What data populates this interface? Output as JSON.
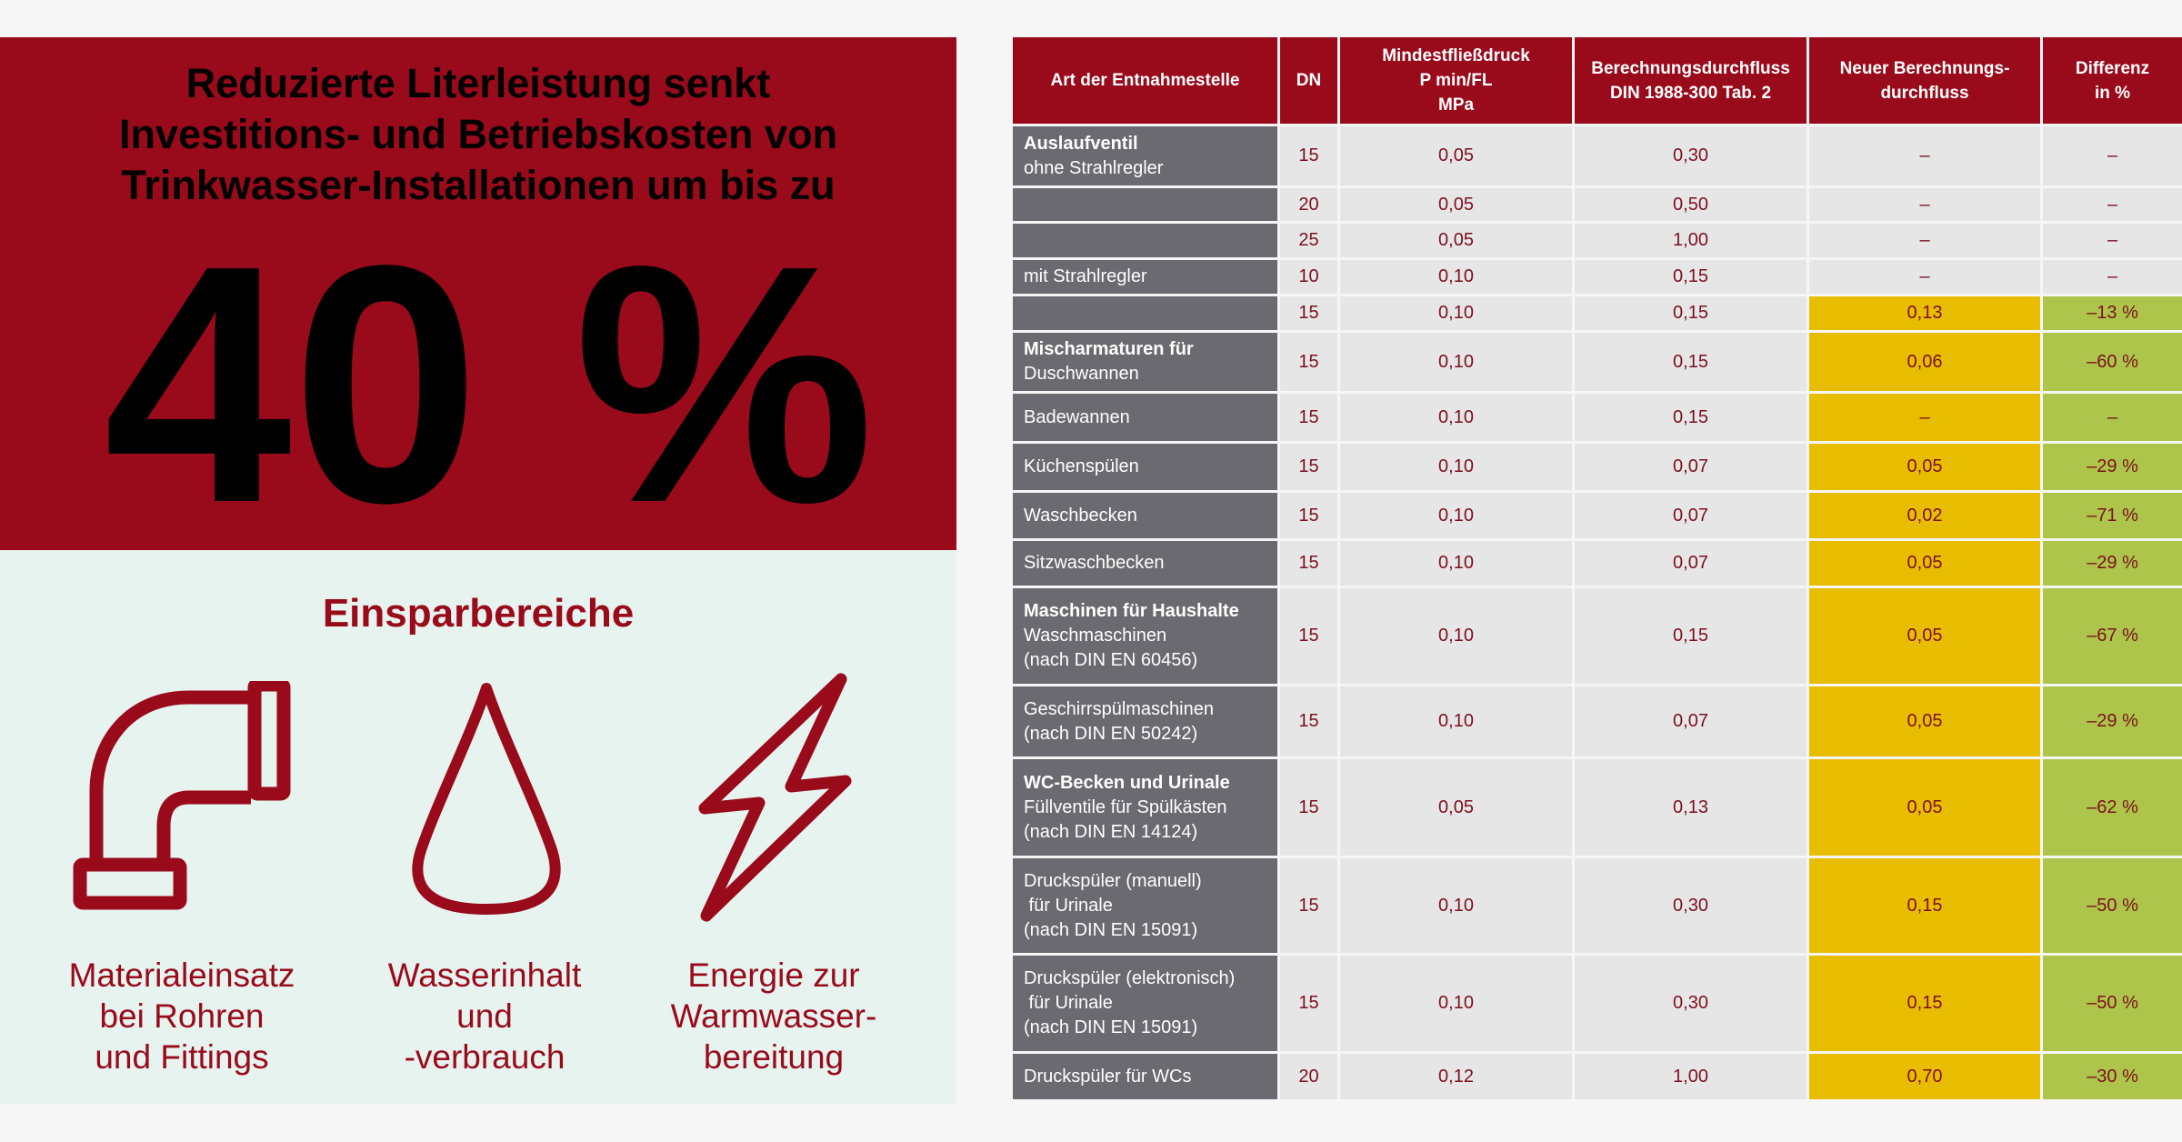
{
  "headline": {
    "lines": [
      "Reduzierte Literleistung senkt",
      "Investitions- und Betriebskosten von",
      "Trinkwasser-Installationen um bis zu"
    ],
    "big_value": "40 %"
  },
  "savings": {
    "title": "Einsparbereiche",
    "items": [
      {
        "icon": "pipe-elbow-icon",
        "lines": [
          "Materialeinsatz",
          "bei Rohren",
          "und Fittings"
        ]
      },
      {
        "icon": "water-drop-icon",
        "lines": [
          "Wasserinhalt",
          "und",
          "-verbrauch"
        ]
      },
      {
        "icon": "lightning-bolt-icon",
        "lines": [
          "Energie zur",
          "Warmwasser-",
          "bereitung"
        ]
      }
    ]
  },
  "colors": {
    "brand_red": "#990a1b",
    "label_grey": "#6b6a70",
    "cell_grey": "#e6e6e6",
    "highlight_yellow": "#e8bd00",
    "highlight_green": "#adc54a",
    "mint": "#e6f3ef"
  },
  "table": {
    "headers": [
      [
        "Art der Entnahmestelle"
      ],
      [
        "DN"
      ],
      [
        "Mindestfließdruck",
        "P min/FL",
        "MPa"
      ],
      [
        "Berechnungsdurchfluss",
        "DIN 1988-300 Tab. 2"
      ],
      [
        "Neuer Berechnungs-",
        "durchfluss"
      ],
      [
        "Differenz",
        "in %"
      ]
    ],
    "rows": [
      {
        "title": "Auslaufventil",
        "lines": [
          "ohne Strahlregler"
        ],
        "dn": "15",
        "p": "0,05",
        "q": "0,30",
        "new": "–",
        "diff": "–",
        "highlight": false
      },
      {
        "title": "",
        "lines": [],
        "dn": "20",
        "p": "0,05",
        "q": "0,50",
        "new": "–",
        "diff": "–",
        "highlight": false
      },
      {
        "title": "",
        "lines": [],
        "dn": "25",
        "p": "0,05",
        "q": "1,00",
        "new": "–",
        "diff": "–",
        "highlight": false
      },
      {
        "title": "",
        "lines": [
          "mit Strahlregler"
        ],
        "dn": "10",
        "p": "0,10",
        "q": "0,15",
        "new": "–",
        "diff": "–",
        "highlight": false
      },
      {
        "title": "",
        "lines": [],
        "dn": "15",
        "p": "0,10",
        "q": "0,15",
        "new": "0,13",
        "diff": "–13 %",
        "highlight": true
      },
      {
        "title": "Mischarmaturen für",
        "lines": [
          "Duschwannen"
        ],
        "dn": "15",
        "p": "0,10",
        "q": "0,15",
        "new": "0,06",
        "diff": "–60 %",
        "highlight": true
      },
      {
        "title": "",
        "lines": [
          "Badewannen"
        ],
        "dn": "15",
        "p": "0,10",
        "q": "0,15",
        "new": "–",
        "diff": "–",
        "highlight": true
      },
      {
        "title": "",
        "lines": [
          "Küchenspülen"
        ],
        "dn": "15",
        "p": "0,10",
        "q": "0,07",
        "new": "0,05",
        "diff": "–29 %",
        "highlight": true
      },
      {
        "title": "",
        "lines": [
          "Waschbecken"
        ],
        "dn": "15",
        "p": "0,10",
        "q": "0,07",
        "new": "0,02",
        "diff": "–71 %",
        "highlight": true
      },
      {
        "title": "",
        "lines": [
          "Sitzwaschbecken"
        ],
        "dn": "15",
        "p": "0,10",
        "q": "0,07",
        "new": "0,05",
        "diff": "–29 %",
        "highlight": true
      },
      {
        "title": "Maschinen für Haushalte",
        "lines": [
          "Waschmaschinen",
          "(nach DIN EN 60456)"
        ],
        "dn": "15",
        "p": "0,10",
        "q": "0,15",
        "new": "0,05",
        "diff": "–67 %",
        "highlight": true
      },
      {
        "title": "",
        "lines": [
          "Geschirrspülmaschinen",
          "(nach DIN EN 50242)"
        ],
        "dn": "15",
        "p": "0,10",
        "q": "0,07",
        "new": "0,05",
        "diff": "–29 %",
        "highlight": true
      },
      {
        "title": "WC-Becken und Urinale",
        "lines": [
          "Füllventile für Spülkästen",
          "(nach DIN EN 14124)"
        ],
        "dn": "15",
        "p": "0,05",
        "q": "0,13",
        "new": "0,05",
        "diff": "–62 %",
        "highlight": true
      },
      {
        "title": "",
        "lines": [
          "Druckspüler (manuell)",
          " für Urinale",
          "(nach DIN EN 15091)"
        ],
        "dn": "15",
        "p": "0,10",
        "q": "0,30",
        "new": "0,15",
        "diff": "–50 %",
        "highlight": true
      },
      {
        "title": "",
        "lines": [
          "Druckspüler (elektronisch)",
          " für Urinale",
          "(nach DIN EN 15091)"
        ],
        "dn": "15",
        "p": "0,10",
        "q": "0,30",
        "new": "0,15",
        "diff": "–50 %",
        "highlight": true
      },
      {
        "title": "",
        "lines": [
          "Druckspüler für WCs"
        ],
        "dn": "20",
        "p": "0,12",
        "q": "1,00",
        "new": "0,70",
        "diff": "–30 %",
        "highlight": true
      }
    ]
  }
}
